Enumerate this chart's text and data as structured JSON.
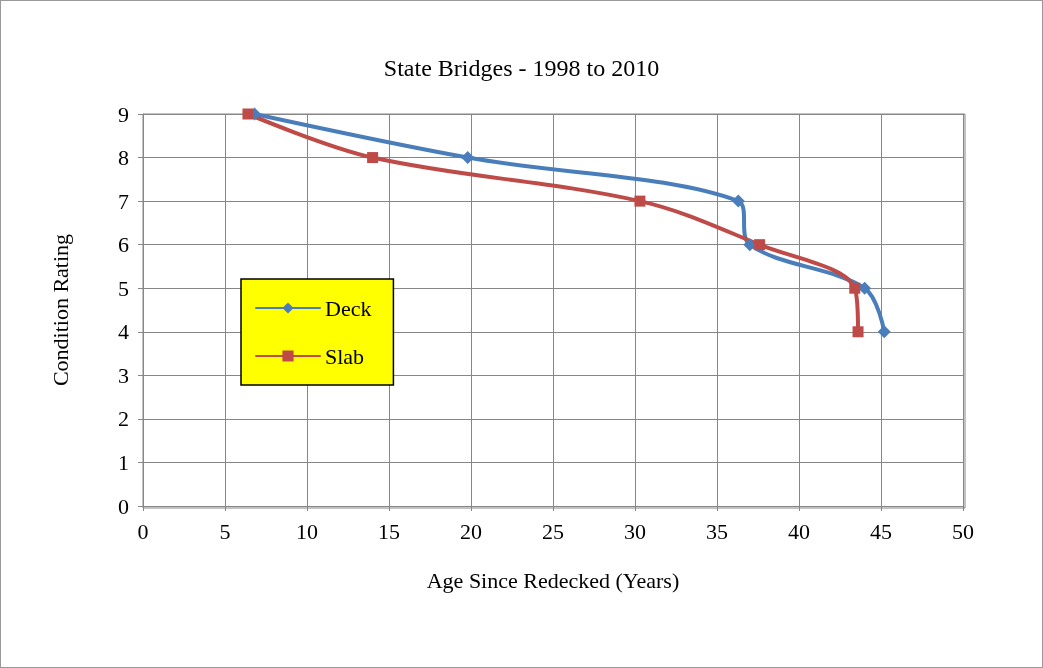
{
  "chart_data": {
    "type": "line",
    "title": "State Bridges - 1998 to 2010",
    "xlabel": "Age Since Redecked (Years)",
    "ylabel": "Condition Rating",
    "series": [
      {
        "name": "Deck",
        "color": "#4a7ebb",
        "marker": "diamond",
        "x": [
          6.8,
          19.8,
          36.3,
          37.0,
          44.0,
          45.2
        ],
        "values": [
          9,
          8,
          7,
          6,
          5,
          4
        ]
      },
      {
        "name": "Slab",
        "color": "#be4b48",
        "marker": "square",
        "x": [
          6.4,
          14.0,
          30.3,
          37.6,
          43.4,
          43.6
        ],
        "values": [
          9,
          8,
          7,
          6,
          5,
          4
        ]
      }
    ],
    "xlim": [
      0,
      50
    ],
    "xticks": [
      0,
      5,
      10,
      15,
      20,
      25,
      30,
      35,
      40,
      45,
      50
    ],
    "ylim": [
      0,
      9
    ],
    "yticks": [
      0,
      1,
      2,
      3,
      4,
      5,
      6,
      7,
      8,
      9
    ],
    "grid": true,
    "legend": "left",
    "line_style": "solid"
  }
}
